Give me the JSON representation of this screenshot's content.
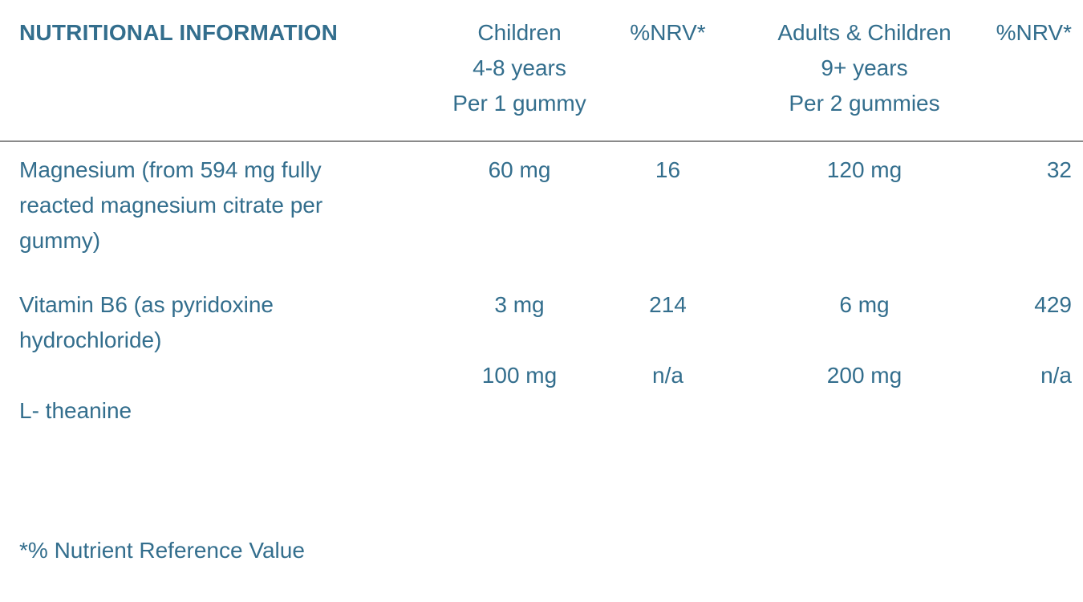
{
  "colors": {
    "text": "#336e8d",
    "divider": "#8a8a8a",
    "background": "#ffffff"
  },
  "table": {
    "title": "NUTRITIONAL INFORMATION",
    "header": {
      "children_col": [
        "Children",
        "4-8 years",
        "Per 1 gummy"
      ],
      "nrv1": "%NRV*",
      "adults_col": [
        "Adults & Children",
        "9+ years",
        "Per 2 gummies"
      ],
      "nrv2": "%NRV*"
    },
    "rows": [
      {
        "name": "Magnesium (from 594 mg fully reacted magnesium citrate per gummy)",
        "children_amount": "60 mg",
        "children_nrv": "16",
        "adults_amount": "120 mg",
        "adults_nrv": "32"
      },
      {
        "name": "Vitamin B6 (as pyridoxine hydrochloride)",
        "children_amount": "3 mg",
        "children_nrv": "214",
        "adults_amount": "6 mg",
        "adults_nrv": "429"
      },
      {
        "name": "L- theanine",
        "children_amount": "100 mg",
        "children_nrv": "n/a",
        "adults_amount": "200 mg",
        "adults_nrv": "n/a"
      }
    ],
    "footnote": "*% Nutrient Reference Value"
  }
}
